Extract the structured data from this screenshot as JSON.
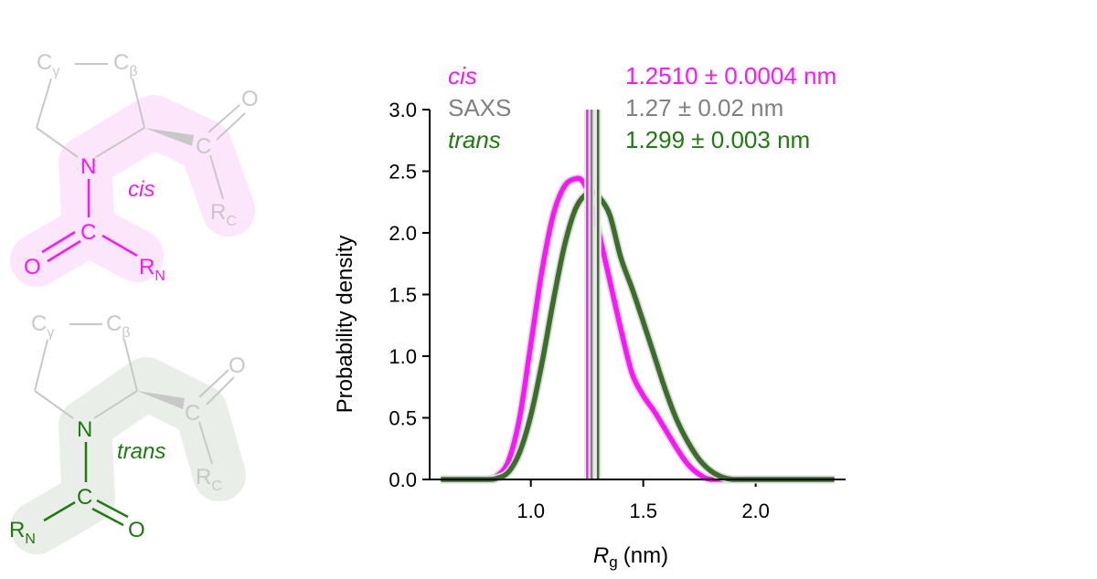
{
  "colors": {
    "cis": "#ff14ff",
    "trans": "#3a6e2a",
    "trans_text": "#1f7a10",
    "saxs": "#808080",
    "molecule_gray": "#c8c8c8",
    "cis_halo": "#fbe3fb",
    "trans_halo": "#e7ece6"
  },
  "molecules": {
    "cis": {
      "label": "cis",
      "atoms": {
        "cg": "C",
        "cg_sub": "γ",
        "cb": "C",
        "cb_sub": "β",
        "n": "N",
        "c_ring": "C",
        "o_ring": "O",
        "rc": "R",
        "rc_sub": "C",
        "c_amide": "C",
        "o_amide": "O",
        "rn": "R",
        "rn_sub": "N"
      }
    },
    "trans": {
      "label": "trans",
      "atoms": {
        "cg": "C",
        "cg_sub": "γ",
        "cb": "C",
        "cb_sub": "β",
        "n": "N",
        "c_ring": "C",
        "o_ring": "O",
        "rc": "R",
        "rc_sub": "C",
        "c_amide": "C",
        "o_amide": "O",
        "rn": "R",
        "rn_sub": "N"
      }
    }
  },
  "chart_data": {
    "type": "line",
    "xlabel_symbol": "R",
    "xlabel_sub": "g",
    "xlabel_unit": "(nm)",
    "ylabel": "Probability density",
    "xlim": [
      0.55,
      2.4
    ],
    "ylim": [
      0,
      3.0
    ],
    "xticks": [
      "1.0",
      "1.5",
      "2.0"
    ],
    "yticks": [
      "0.0",
      "0.5",
      "1.0",
      "1.5",
      "2.0",
      "2.5",
      "3.0"
    ],
    "series": [
      {
        "name": "cis",
        "key": "cis",
        "x": [
          0.6,
          0.8,
          0.85,
          0.9,
          0.95,
          1.0,
          1.05,
          1.1,
          1.15,
          1.2,
          1.23,
          1.26,
          1.3,
          1.35,
          1.4,
          1.45,
          1.5,
          1.55,
          1.6,
          1.65,
          1.7,
          1.75,
          1.8,
          1.9,
          2.1
        ],
        "y": [
          0,
          0.0,
          0.03,
          0.15,
          0.5,
          1.1,
          1.7,
          2.15,
          2.38,
          2.44,
          2.42,
          2.3,
          2.02,
          1.62,
          1.22,
          0.86,
          0.68,
          0.55,
          0.4,
          0.25,
          0.12,
          0.04,
          0.0,
          0.0,
          0.0
        ]
      },
      {
        "name": "trans",
        "key": "trans",
        "x": [
          0.6,
          0.8,
          0.85,
          0.9,
          0.95,
          1.0,
          1.05,
          1.1,
          1.15,
          1.2,
          1.25,
          1.28,
          1.3,
          1.35,
          1.4,
          1.45,
          1.5,
          1.55,
          1.6,
          1.65,
          1.7,
          1.75,
          1.8,
          1.85,
          1.9,
          2.0,
          2.2,
          2.35
        ],
        "y": [
          0,
          0.0,
          0.01,
          0.06,
          0.22,
          0.52,
          0.95,
          1.45,
          1.9,
          2.2,
          2.32,
          2.33,
          2.3,
          2.15,
          1.8,
          1.55,
          1.28,
          1.0,
          0.72,
          0.48,
          0.3,
          0.16,
          0.07,
          0.02,
          0.0,
          0.0,
          0.0,
          0.0
        ]
      }
    ],
    "vlines": [
      {
        "key": "cis",
        "x": 1.251
      },
      {
        "key": "saxs",
        "x": 1.27
      },
      {
        "key": "trans",
        "x": 1.299
      }
    ],
    "legend": [
      {
        "key": "cis",
        "name": "cis",
        "value": "1.2510 ± 0.0004 nm"
      },
      {
        "key": "saxs",
        "name": "SAXS",
        "value": "1.27 ± 0.02 nm"
      },
      {
        "key": "trans",
        "name": "trans",
        "value": "1.299 ± 0.003 nm"
      }
    ]
  }
}
